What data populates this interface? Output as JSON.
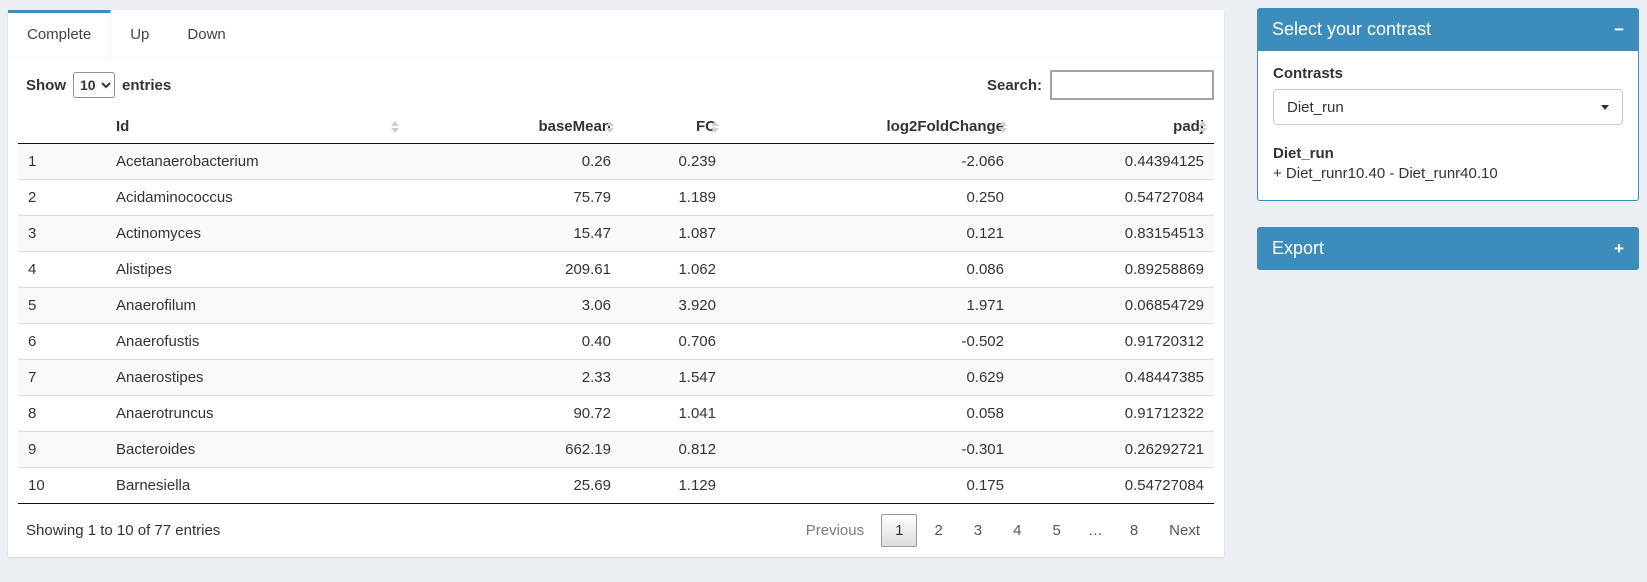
{
  "colors": {
    "primary": "#3c8dbc",
    "page_bg": "#ecf0f5",
    "stripe": "#f9f9f9"
  },
  "tabs": [
    {
      "label": "Complete",
      "active": true
    },
    {
      "label": "Up",
      "active": false
    },
    {
      "label": "Down",
      "active": false
    }
  ],
  "table_controls": {
    "show_label": "Show",
    "page_length": "10",
    "entries_label": "entries",
    "search_label": "Search:",
    "search_value": ""
  },
  "table": {
    "columns": {
      "index": "",
      "id": "Id",
      "base_mean": "baseMean",
      "fc": "FC",
      "log2fc": "log2FoldChange",
      "padj": "padj"
    },
    "rows": [
      {
        "index": "1",
        "id": "Acetanaerobacterium",
        "base_mean": "0.26",
        "fc": "0.239",
        "log2fc": "-2.066",
        "padj": "0.44394125"
      },
      {
        "index": "2",
        "id": "Acidaminococcus",
        "base_mean": "75.79",
        "fc": "1.189",
        "log2fc": "0.250",
        "padj": "0.54727084"
      },
      {
        "index": "3",
        "id": "Actinomyces",
        "base_mean": "15.47",
        "fc": "1.087",
        "log2fc": "0.121",
        "padj": "0.83154513"
      },
      {
        "index": "4",
        "id": "Alistipes",
        "base_mean": "209.61",
        "fc": "1.062",
        "log2fc": "0.086",
        "padj": "0.89258869"
      },
      {
        "index": "5",
        "id": "Anaerofilum",
        "base_mean": "3.06",
        "fc": "3.920",
        "log2fc": "1.971",
        "padj": "0.06854729"
      },
      {
        "index": "6",
        "id": "Anaerofustis",
        "base_mean": "0.40",
        "fc": "0.706",
        "log2fc": "-0.502",
        "padj": "0.91720312"
      },
      {
        "index": "7",
        "id": "Anaerostipes",
        "base_mean": "2.33",
        "fc": "1.547",
        "log2fc": "0.629",
        "padj": "0.48447385"
      },
      {
        "index": "8",
        "id": "Anaerotruncus",
        "base_mean": "90.72",
        "fc": "1.041",
        "log2fc": "0.058",
        "padj": "0.91712322"
      },
      {
        "index": "9",
        "id": "Bacteroides",
        "base_mean": "662.19",
        "fc": "0.812",
        "log2fc": "-0.301",
        "padj": "0.26292721"
      },
      {
        "index": "10",
        "id": "Barnesiella",
        "base_mean": "25.69",
        "fc": "1.129",
        "log2fc": "0.175",
        "padj": "0.54727084"
      }
    ]
  },
  "table_footer": {
    "info": "Showing 1 to 10 of 77 entries",
    "pagination": {
      "previous": "Previous",
      "pages": [
        "1",
        "2",
        "3",
        "4",
        "5",
        "…",
        "8"
      ],
      "current_page": "1",
      "next": "Next"
    }
  },
  "contrast_panel": {
    "title": "Select your contrast",
    "collapse_icon": "−",
    "contrasts_label": "Contrasts",
    "selected_contrast": "Diet_run",
    "contrast_name": "Diet_run",
    "contrast_formula": "+ Diet_runr10.40 - Diet_runr40.10"
  },
  "export_panel": {
    "title": "Export",
    "expand_icon": "+"
  }
}
